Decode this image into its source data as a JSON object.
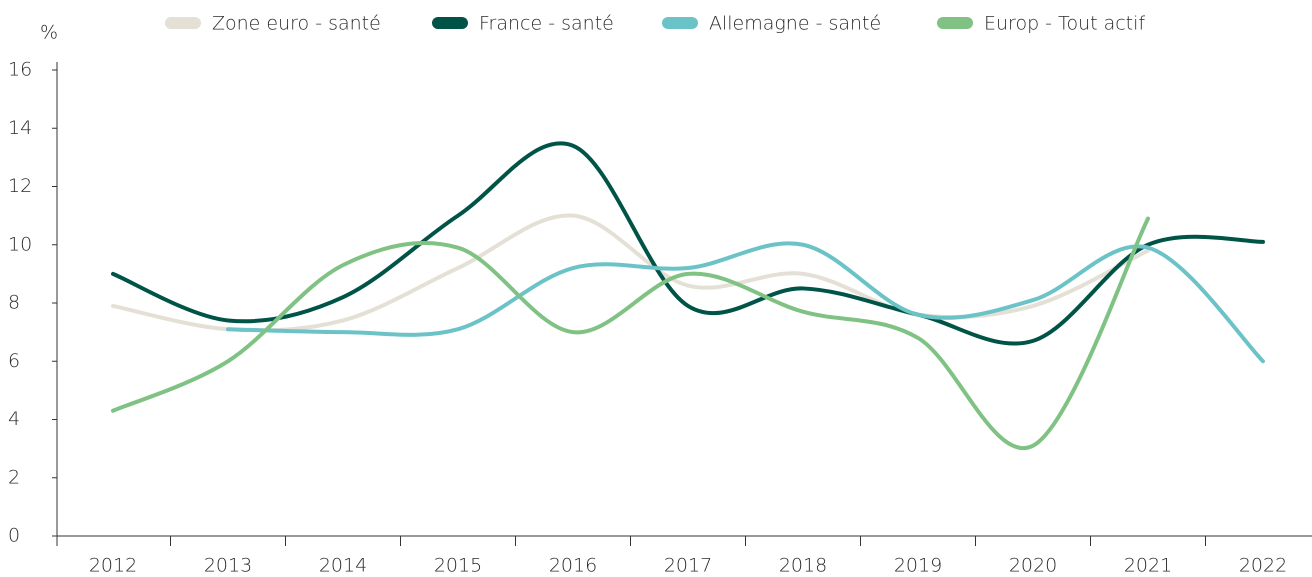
{
  "chart_data": {
    "type": "line",
    "y_label": "%",
    "categories": [
      "2012",
      "2013",
      "2014",
      "2015",
      "2016",
      "2017",
      "2018",
      "2019",
      "2020",
      "2021",
      "2022"
    ],
    "series": [
      {
        "name": "Zone euro - santé",
        "color": "#e4e0d6",
        "values": [
          7.9,
          7.1,
          7.4,
          9.2,
          11.0,
          8.6,
          9.0,
          7.6,
          7.9,
          9.8,
          null
        ]
      },
      {
        "name": "France - santé",
        "color": "#005347",
        "values": [
          9.0,
          7.4,
          8.2,
          11.0,
          13.4,
          7.9,
          8.5,
          7.6,
          6.7,
          10.0,
          10.1
        ]
      },
      {
        "name": "Allemagne - santé",
        "color": "#6cc3c7",
        "values": [
          null,
          7.1,
          7.0,
          7.1,
          9.2,
          9.2,
          10.0,
          7.6,
          8.1,
          9.9,
          6.0
        ]
      },
      {
        "name": "Europ - Tout actif",
        "color": "#7fc283",
        "values": [
          4.3,
          6.0,
          9.3,
          9.9,
          7.0,
          9.0,
          7.7,
          6.8,
          3.1,
          10.9,
          null
        ]
      }
    ],
    "ylim": [
      0,
      16
    ],
    "yticks": [
      0,
      2,
      4,
      6,
      8,
      10,
      12,
      14,
      16
    ],
    "legend": "top"
  }
}
